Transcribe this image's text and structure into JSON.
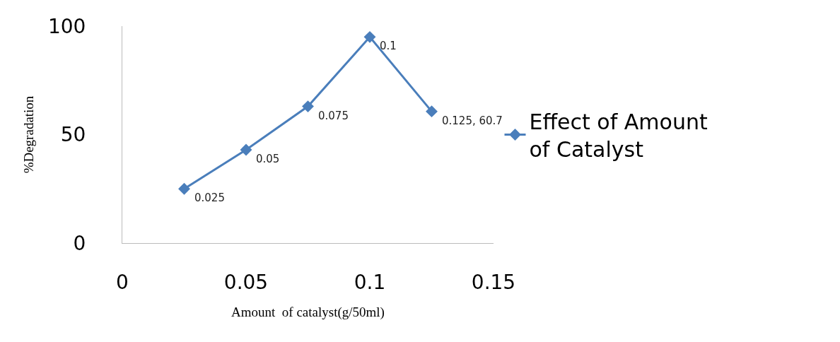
{
  "chart_data": {
    "type": "line",
    "xlabel": "Amount  of catalyst(g/50ml)",
    "ylabel": "%Degradation",
    "x": [
      0.025,
      0.05,
      0.075,
      0.1,
      0.125
    ],
    "series": [
      {
        "name": "Effect of Amount of Catalyst",
        "color": "#4a7ebb",
        "values": [
          25,
          43,
          63,
          95,
          60.7
        ]
      }
    ],
    "annotations": [
      {
        "text": "0.025",
        "x": 0.025,
        "y": 25
      },
      {
        "text": "0.05",
        "x": 0.05,
        "y": 43
      },
      {
        "text": "0.075",
        "x": 0.075,
        "y": 63
      },
      {
        "text": "0.1",
        "x": 0.1,
        "y": 95
      },
      {
        "text": "0.125, 60.7",
        "x": 0.125,
        "y": 60.7
      }
    ],
    "xlim": [
      0,
      0.15
    ],
    "xticks": [
      0,
      0.05,
      0.1,
      0.15
    ],
    "ylim": [
      0,
      100
    ],
    "yticks": [
      0,
      50,
      100
    ],
    "legend": "right",
    "marker": "diamond",
    "line_style": "solid"
  }
}
